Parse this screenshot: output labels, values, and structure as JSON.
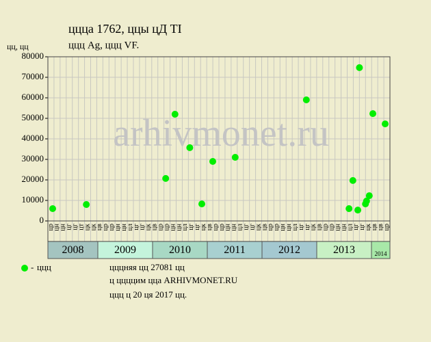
{
  "chart_data": {
    "type": "scatter",
    "title": "ццца 1762, ццы цД TI",
    "subtitle": "ццц Ag, ццц VF.",
    "y_label": "цц, цц",
    "watermark": "arhivmonet.ru",
    "notes": [
      "цццняя цц 27081 цц",
      "ц ццццим цца ARHIVMONET.RU",
      "ццц ц 20 ця 2017 цц."
    ],
    "xlim": [
      2008.0875,
      2014.3375
    ],
    "xticks": [
      2009,
      2010,
      2011,
      2012,
      2013,
      2014
    ],
    "year_labels": [
      "2008",
      "2009",
      "2010",
      "2011",
      "2012",
      "2013",
      "2014"
    ],
    "year_colors": [
      "#a4c4c0",
      "#c4f4dc",
      "#a8d8c4",
      "#a8d0d0",
      "#a4c8d0",
      "#c8f0c4",
      "#a8e8a8"
    ],
    "x_column_labels": [
      "цр",
      "цн",
      "цн",
      "цг",
      "цг",
      "цт",
      "цк",
      "цк",
      "цв",
      "цр",
      "цр",
      "цн",
      "цн",
      "цл",
      "цг",
      "цг",
      "цк",
      "цв",
      "цр",
      "цр",
      "цн",
      "цн",
      "цл",
      "цг",
      "цг",
      "цк",
      "цв",
      "цр",
      "цр",
      "цн",
      "цн",
      "цл",
      "цг",
      "цг",
      "цк",
      "цв",
      "цр",
      "цр",
      "цн",
      "цн",
      "цл",
      "цг",
      "цг",
      "цк",
      "цв",
      "цр",
      "цр",
      "цн",
      "цн",
      "цл",
      "цг",
      "цг",
      "цк",
      "цв",
      "цв",
      "цр"
    ],
    "ylim": [
      0,
      80000
    ],
    "yticks": [
      0,
      10000,
      20000,
      30000,
      40000,
      50000,
      60000,
      70000,
      80000
    ],
    "grid": true,
    "series": [
      {
        "name": "ццц",
        "color": "#00ee00",
        "x": [
          2008.175,
          2008.79,
          2010.24,
          2010.41,
          2010.68,
          2010.9,
          2011.1,
          2011.51,
          2012.81,
          2013.59,
          2013.66,
          2013.75,
          2013.78,
          2013.89,
          2013.91,
          2013.96,
          2014.025,
          2014.25
        ],
        "values": [
          6000,
          8000,
          20700,
          52000,
          35700,
          8300,
          29000,
          31000,
          59000,
          6000,
          19700,
          5300,
          74700,
          8300,
          9700,
          12300,
          52300,
          47300
        ]
      }
    ]
  }
}
